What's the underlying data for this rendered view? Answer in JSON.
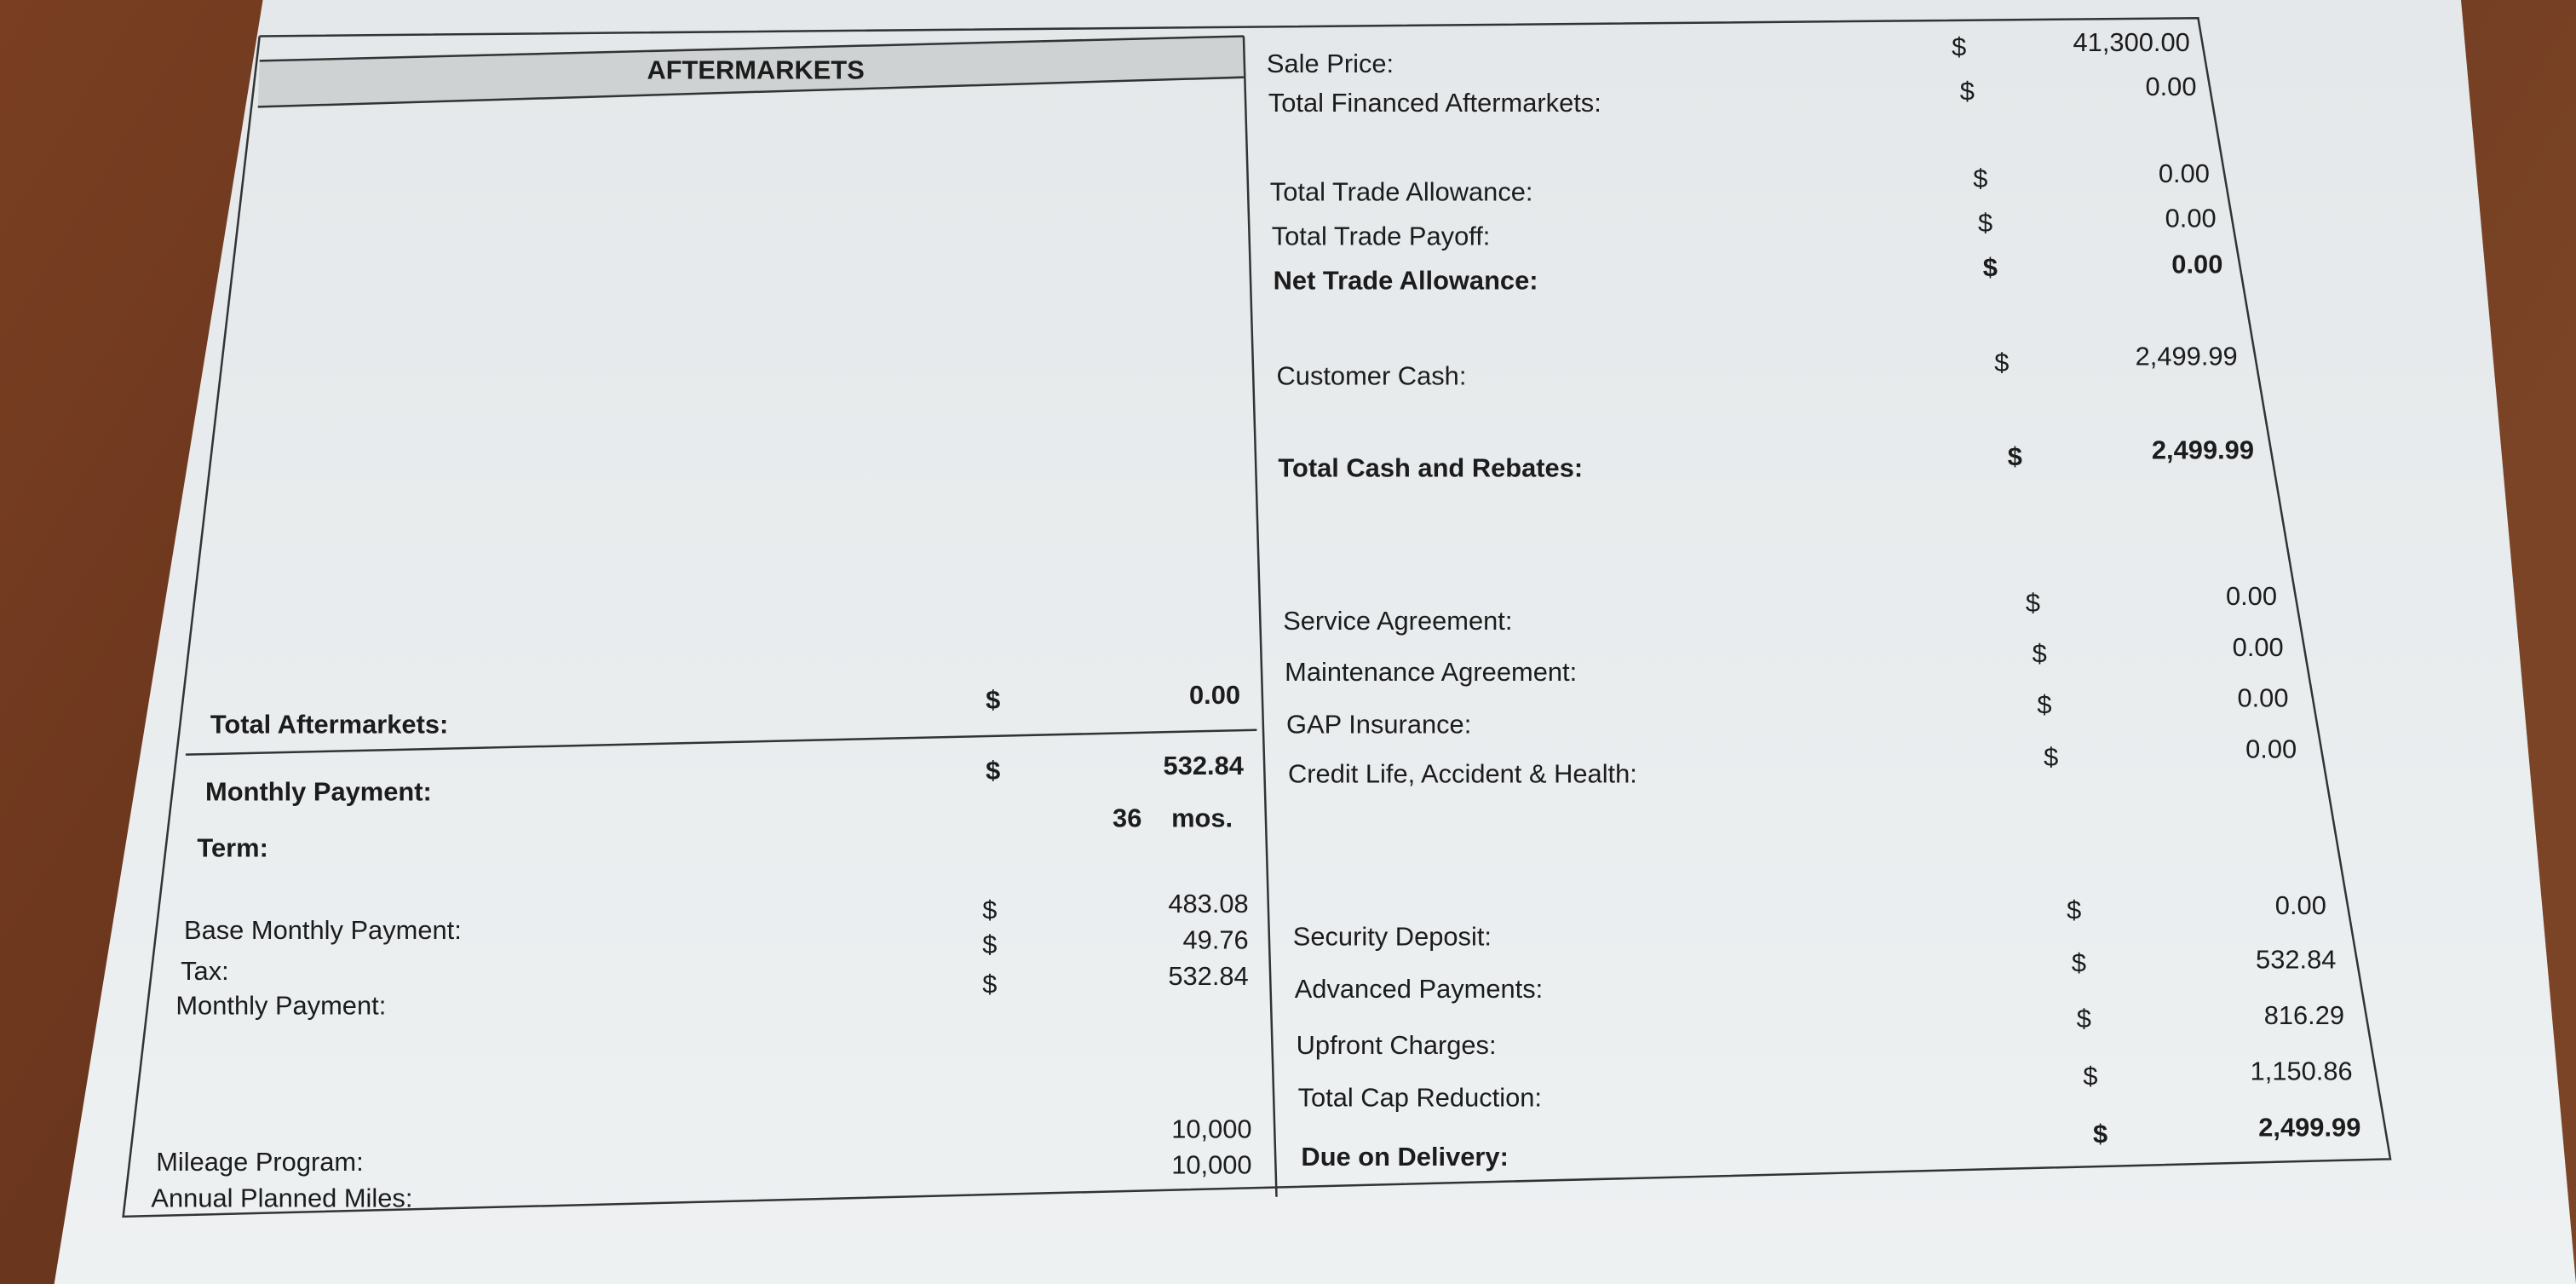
{
  "left": {
    "header": "AFTERMARKETS",
    "total_aftermarkets": {
      "label": "Total Aftermarkets:",
      "currency": "$",
      "amount": "0.00"
    },
    "monthly_payment": {
      "label": "Monthly Payment:",
      "currency": "$",
      "amount": "532.84"
    },
    "term": {
      "label": "Term:",
      "amount": "36",
      "unit": "mos."
    },
    "breakdown": [
      {
        "label": "Base Monthly Payment:",
        "currency": "$",
        "amount": "483.08"
      },
      {
        "label": "Tax:",
        "currency": "$",
        "amount": "49.76"
      },
      {
        "label": "Monthly Payment:",
        "currency": "$",
        "amount": "532.84"
      }
    ],
    "mileage": [
      {
        "label": "Mileage Program:",
        "amount": "10,000"
      },
      {
        "label": "Annual Planned Miles:",
        "amount": "10,000"
      }
    ]
  },
  "right": {
    "rows": [
      {
        "label": "Sale Price:",
        "currency": "$",
        "amount": "41,300.00",
        "bold": false
      },
      {
        "label": "Total Financed Aftermarkets:",
        "currency": "$",
        "amount": "0.00",
        "bold": false
      },
      {
        "label": "Total Trade Allowance:",
        "currency": "$",
        "amount": "0.00",
        "bold": false
      },
      {
        "label": "Total Trade Payoff:",
        "currency": "$",
        "amount": "0.00",
        "bold": false
      },
      {
        "label": "Net Trade Allowance:",
        "currency": "$",
        "amount": "0.00",
        "bold": true
      },
      {
        "label": "Customer Cash:",
        "currency": "$",
        "amount": "2,499.99",
        "bold": false
      },
      {
        "label": "Total Cash and Rebates:",
        "currency": "$",
        "amount": "2,499.99",
        "bold": true
      },
      {
        "label": "Service Agreement:",
        "currency": "$",
        "amount": "0.00",
        "bold": false
      },
      {
        "label": "Maintenance Agreement:",
        "currency": "$",
        "amount": "0.00",
        "bold": false
      },
      {
        "label": "GAP Insurance:",
        "currency": "$",
        "amount": "0.00",
        "bold": false
      },
      {
        "label": "Credit Life, Accident & Health:",
        "currency": "$",
        "amount": "0.00",
        "bold": false
      },
      {
        "label": "Security Deposit:",
        "currency": "$",
        "amount": "0.00",
        "bold": false
      },
      {
        "label": "Advanced Payments:",
        "currency": "$",
        "amount": "532.84",
        "bold": false
      },
      {
        "label": "Upfront Charges:",
        "currency": "$",
        "amount": "816.29",
        "bold": false
      },
      {
        "label": "Total Cap Reduction:",
        "currency": "$",
        "amount": "1,150.86",
        "bold": false
      },
      {
        "label": "Due on Delivery:",
        "currency": "$",
        "amount": "2,499.99",
        "bold": true
      }
    ]
  }
}
